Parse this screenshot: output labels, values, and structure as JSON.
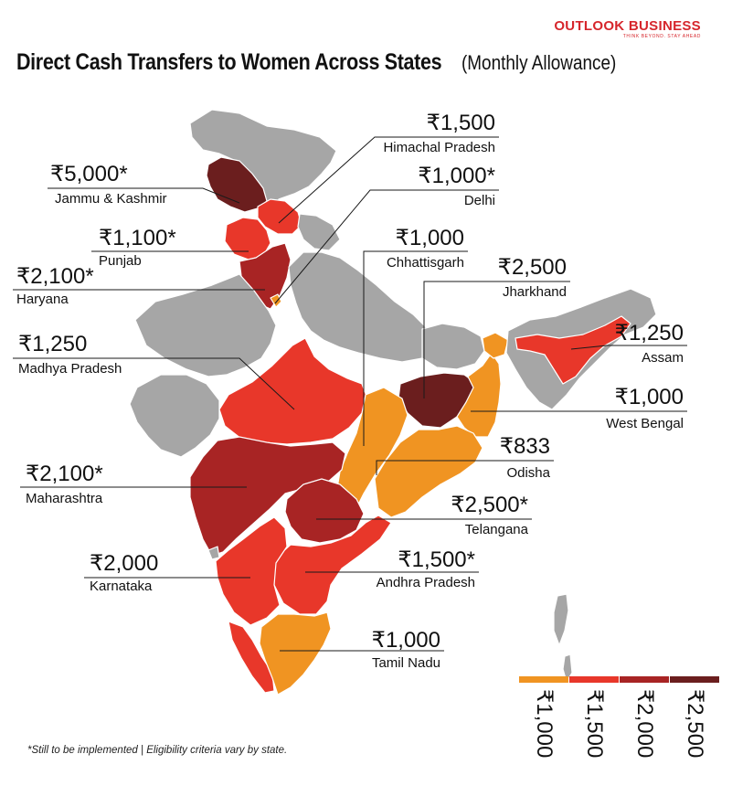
{
  "brand": {
    "name": "OUTLOOK BUSINESS",
    "tagline": "THINK BEYOND. STAY AHEAD"
  },
  "title": {
    "main": "Direct Cash Transfers to Women Across States",
    "sub": "(Monthly Allowance)"
  },
  "footnote": "*Still to be implemented | Eligibility criteria vary by state.",
  "colors": {
    "none": "#a6a6a6",
    "tier_1000": "#f09422",
    "tier_1500": "#e8372a",
    "tier_2000": "#a82424",
    "tier_2500": "#6b1e1e",
    "border": "#ffffff"
  },
  "legend": [
    {
      "label": "₹1,000",
      "color": "#f09422"
    },
    {
      "label": "₹1,500",
      "color": "#e8372a"
    },
    {
      "label": "₹2,000",
      "color": "#a82424"
    },
    {
      "label": "₹2,500",
      "color": "#6b1e1e"
    }
  ],
  "states": [
    {
      "name": "Himachal Pradesh",
      "amount": "₹1,500"
    },
    {
      "name": "Jammu & Kashmir",
      "amount": "₹5,000*"
    },
    {
      "name": "Delhi",
      "amount": "₹1,000*"
    },
    {
      "name": "Punjab",
      "amount": "₹1,100*"
    },
    {
      "name": "Chhattisgarh",
      "amount": "₹1,000"
    },
    {
      "name": "Haryana",
      "amount": "₹2,100*"
    },
    {
      "name": "Jharkhand",
      "amount": "₹2,500"
    },
    {
      "name": "Madhya Pradesh",
      "amount": "₹1,250"
    },
    {
      "name": "Assam",
      "amount": "₹1,250"
    },
    {
      "name": "West Bengal",
      "amount": "₹1,000"
    },
    {
      "name": "Odisha",
      "amount": "₹833"
    },
    {
      "name": "Maharashtra",
      "amount": "₹2,100*"
    },
    {
      "name": "Telangana",
      "amount": "₹2,500*"
    },
    {
      "name": "Karnataka",
      "amount": "₹2,000"
    },
    {
      "name": "Andhra Pradesh",
      "amount": "₹1,500*"
    },
    {
      "name": "Tamil Nadu",
      "amount": "₹1,000"
    }
  ]
}
